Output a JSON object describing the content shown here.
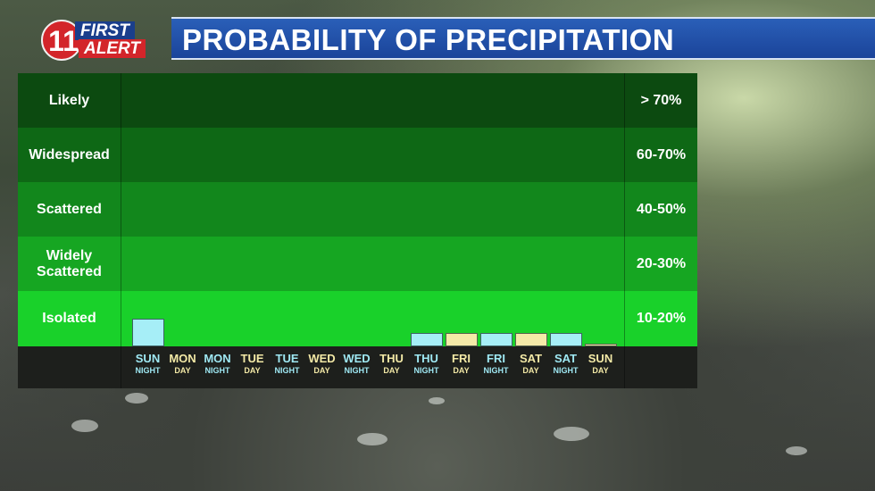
{
  "logo": {
    "number": "11",
    "line1": "FIRST",
    "line2": "ALERT"
  },
  "title": "PROBABILITY OF PRECIPITATION",
  "colors": {
    "night_bar": "#a6eef7",
    "day_bar": "#f4eaa8",
    "band_likely": "#0c4a10",
    "band_widespread": "#0e6815",
    "band_scattered": "#12871c",
    "band_widely_scattered": "#16a622",
    "band_isolated": "#19d12a"
  },
  "chart_data": {
    "type": "bar",
    "title": "PROBABILITY OF PRECIPITATION",
    "bands": [
      {
        "label": "Likely",
        "range": "> 70%"
      },
      {
        "label": "Widespread",
        "range": "60-70%"
      },
      {
        "label": "Scattered",
        "range": "40-50%"
      },
      {
        "label": "Widely Scattered",
        "range": "20-30%"
      },
      {
        "label": "Isolated",
        "range": "10-20%"
      }
    ],
    "periods": [
      {
        "day": "SUN",
        "period": "NIGHT",
        "value": 10,
        "kind": "night"
      },
      {
        "day": "MON",
        "period": "DAY",
        "value": 0,
        "kind": "day"
      },
      {
        "day": "MON",
        "period": "NIGHT",
        "value": 0,
        "kind": "night"
      },
      {
        "day": "TUE",
        "period": "DAY",
        "value": 0,
        "kind": "day"
      },
      {
        "day": "TUE",
        "period": "NIGHT",
        "value": 0,
        "kind": "night"
      },
      {
        "day": "WED",
        "period": "DAY",
        "value": 0,
        "kind": "day"
      },
      {
        "day": "WED",
        "period": "NIGHT",
        "value": 0,
        "kind": "night"
      },
      {
        "day": "THU",
        "period": "DAY",
        "value": 0,
        "kind": "day"
      },
      {
        "day": "THU",
        "period": "NIGHT",
        "value": 5,
        "kind": "night"
      },
      {
        "day": "FRI",
        "period": "DAY",
        "value": 5,
        "kind": "day"
      },
      {
        "day": "FRI",
        "period": "NIGHT",
        "value": 5,
        "kind": "night"
      },
      {
        "day": "SAT",
        "period": "DAY",
        "value": 5,
        "kind": "day"
      },
      {
        "day": "SAT",
        "period": "NIGHT",
        "value": 5,
        "kind": "night"
      },
      {
        "day": "SUN",
        "period": "DAY",
        "value": 1,
        "kind": "day"
      }
    ],
    "ylim": [
      0,
      100
    ]
  }
}
